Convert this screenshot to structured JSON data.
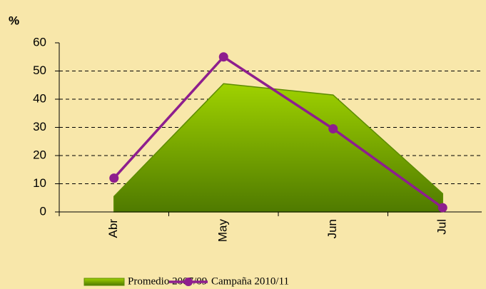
{
  "chart_data": {
    "type": "line",
    "y_label": "%",
    "categories": [
      "Abr",
      "May",
      "Jun",
      "Jul"
    ],
    "series": [
      {
        "name": "Promedio 2007/09",
        "type": "area",
        "color": "#7fae00",
        "values": [
          5.5,
          45.5,
          41.5,
          6.5
        ]
      },
      {
        "name": "Campaña 2010/11",
        "type": "line",
        "color": "#8e1e8e",
        "values": [
          12,
          55,
          29.5,
          1.5
        ]
      }
    ],
    "ylim": [
      0,
      60
    ],
    "yticks": [
      0,
      10,
      20,
      30,
      40,
      50,
      60
    ],
    "grid": true
  }
}
